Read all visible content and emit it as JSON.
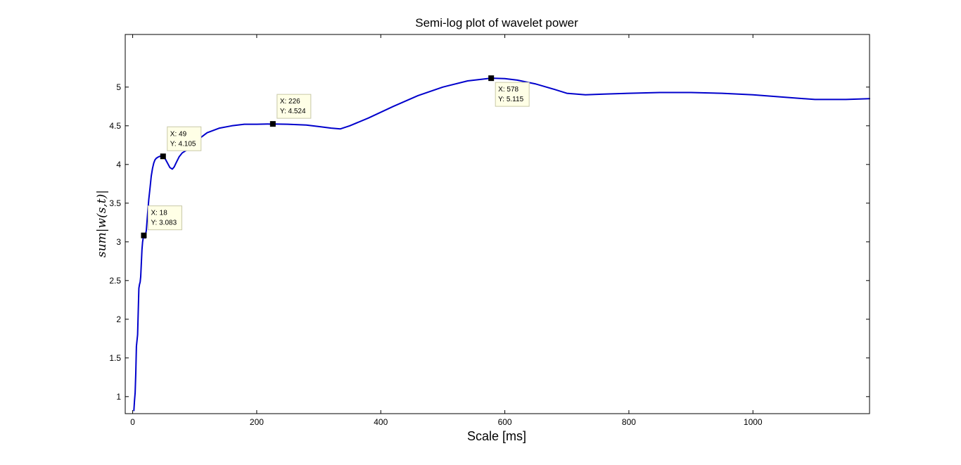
{
  "chart_data": {
    "type": "line",
    "title": "Semi-log plot of wavelet power",
    "xlabel": "Scale [ms]",
    "ylabel": "sum|w(s,t)|",
    "xlim": [
      -12,
      1188
    ],
    "ylim": [
      0.78,
      5.68
    ],
    "xticks": [
      0,
      200,
      400,
      600,
      800,
      1000
    ],
    "xtick_labels": [
      "0",
      "200",
      "400",
      "600",
      "800",
      "1000"
    ],
    "yticks": [
      1,
      1.5,
      2,
      2.5,
      3,
      3.5,
      4,
      4.5,
      5
    ],
    "ytick_labels": [
      "1",
      "1.5",
      "2",
      "2.5",
      "3",
      "3.5",
      "4",
      "4.5",
      "5"
    ],
    "grid": false,
    "line_color": "#0000cc",
    "series": [
      {
        "x": [
          2,
          3,
          4,
          5,
          6,
          8,
          9,
          10,
          11,
          12,
          13,
          15,
          16,
          17,
          18,
          19,
          20,
          22,
          24,
          26,
          28,
          30,
          32,
          34,
          36,
          38,
          40,
          42,
          44,
          46,
          49,
          52,
          56,
          60,
          64,
          67,
          70,
          75,
          80,
          90,
          100,
          110,
          120,
          140,
          160,
          180,
          200,
          226,
          250,
          280,
          300,
          320,
          335,
          350,
          380,
          420,
          460,
          500,
          540,
          578,
          600,
          620,
          650,
          680,
          700,
          730,
          760,
          800,
          850,
          900,
          950,
          1000,
          1050,
          1100,
          1150,
          1188
        ],
        "y": [
          0.82,
          0.95,
          1.05,
          1.3,
          1.65,
          1.8,
          2.1,
          2.4,
          2.45,
          2.48,
          2.55,
          2.9,
          3.0,
          3.05,
          3.083,
          3.06,
          3.05,
          3.15,
          3.35,
          3.55,
          3.7,
          3.85,
          3.95,
          4.02,
          4.06,
          4.08,
          4.09,
          4.1,
          4.105,
          4.11,
          4.105,
          4.08,
          4.02,
          3.96,
          3.94,
          3.97,
          4.02,
          4.1,
          4.15,
          4.2,
          4.27,
          4.35,
          4.41,
          4.47,
          4.5,
          4.52,
          4.52,
          4.524,
          4.52,
          4.51,
          4.49,
          4.47,
          4.46,
          4.5,
          4.6,
          4.75,
          4.89,
          5.0,
          5.08,
          5.115,
          5.11,
          5.09,
          5.04,
          4.97,
          4.92,
          4.9,
          4.91,
          4.92,
          4.93,
          4.93,
          4.92,
          4.9,
          4.87,
          4.84,
          4.84,
          4.85
        ]
      }
    ],
    "datatips": [
      {
        "x": 18,
        "y": 3.083,
        "x_text": "X: 18",
        "y_text": "Y: 3.083",
        "side": "right-above"
      },
      {
        "x": 49,
        "y": 4.105,
        "x_text": "X: 49",
        "y_text": "Y: 4.105",
        "side": "right-above"
      },
      {
        "x": 226,
        "y": 4.524,
        "x_text": "X: 226",
        "y_text": "Y: 4.524",
        "side": "right-above"
      },
      {
        "x": 578,
        "y": 5.115,
        "x_text": "X: 578",
        "y_text": "Y: 5.115",
        "side": "right-below"
      }
    ]
  }
}
